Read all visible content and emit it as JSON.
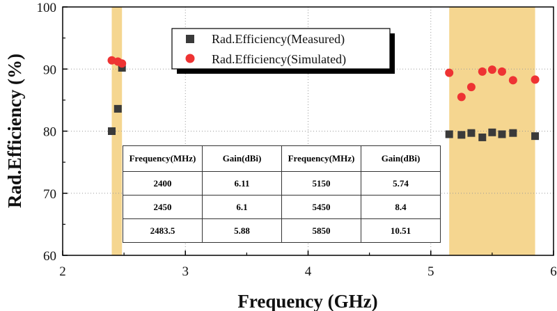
{
  "chart_data": {
    "type": "scatter",
    "xlabel": "Frequency (GHz)",
    "ylabel": "Rad.Efficiency (%)",
    "xlim": [
      2,
      6
    ],
    "ylim": [
      60,
      100
    ],
    "x_ticks": [
      "2",
      "3",
      "4",
      "5",
      "6"
    ],
    "y_ticks": [
      "60",
      "70",
      "80",
      "90",
      "100"
    ],
    "grid": "dotted",
    "bands": [
      {
        "x_start": 2.4,
        "x_end": 2.4835,
        "color": "#f5d690"
      },
      {
        "x_start": 5.15,
        "x_end": 5.85,
        "color": "#f5d690"
      }
    ],
    "series": [
      {
        "name": "Rad.Efficiency(Measured)",
        "marker": "square",
        "color": "#3a3a3a",
        "x": [
          2.4,
          2.45,
          2.4835,
          5.15,
          5.25,
          5.33,
          5.42,
          5.5,
          5.58,
          5.67,
          5.85
        ],
        "y": [
          80.0,
          83.6,
          90.2,
          79.5,
          79.4,
          79.7,
          79.0,
          79.8,
          79.5,
          79.7,
          79.2
        ]
      },
      {
        "name": "Rad.Efficiency(Simulated)",
        "marker": "circle",
        "color": "#ee3333",
        "x": [
          2.4,
          2.45,
          2.4835,
          5.15,
          5.25,
          5.33,
          5.42,
          5.5,
          5.58,
          5.67,
          5.85
        ],
        "y": [
          91.4,
          91.2,
          90.9,
          89.4,
          85.5,
          87.1,
          89.6,
          89.9,
          89.6,
          88.2,
          88.3
        ]
      }
    ],
    "legend_position": "top-center"
  },
  "table": {
    "headers": [
      "Frequency(MHz)",
      "Gain(dBi)",
      "Frequency(MHz)",
      "Gain(dBi)"
    ],
    "rows": [
      [
        "2400",
        "6.11",
        "5150",
        "5.74"
      ],
      [
        "2450",
        "6.1",
        "5450",
        "8.4"
      ],
      [
        "2483.5",
        "5.88",
        "5850",
        "10.51"
      ]
    ]
  }
}
